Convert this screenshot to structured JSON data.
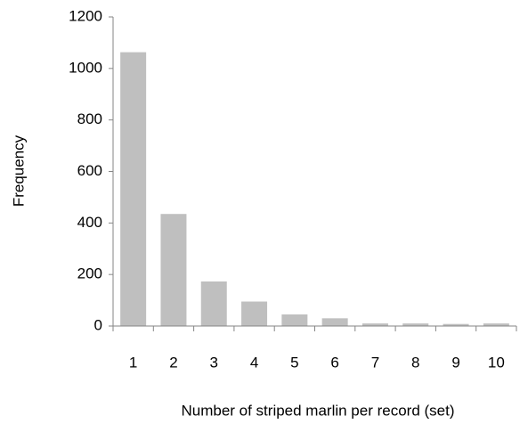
{
  "chart_data": {
    "type": "bar",
    "x_label": "Number of striped marlin per record (set)",
    "y_label": "Frequency",
    "categories": [
      "1",
      "2",
      "3",
      "4",
      "5",
      "6",
      "7",
      "8",
      "9",
      "10"
    ],
    "values": [
      1063,
      435,
      173,
      95,
      45,
      30,
      10,
      10,
      8,
      10
    ],
    "color": "#bfbfbf",
    "ylim": [
      0,
      1200
    ],
    "yticks": [
      0,
      200,
      400,
      600,
      800,
      1000,
      1200
    ],
    "grid": false
  }
}
